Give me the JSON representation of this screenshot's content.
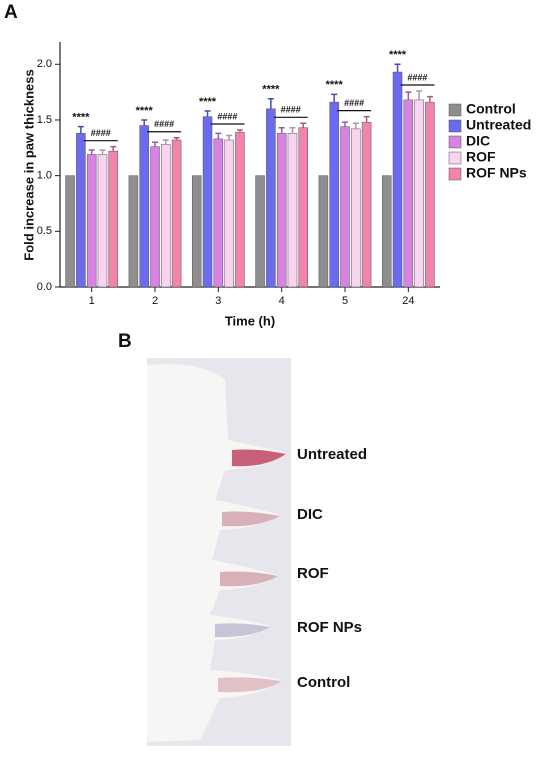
{
  "panel_label": "A",
  "chart_data": {
    "type": "bar",
    "y_label": "Fold increase in paw thickness",
    "x_label": "Time (h)",
    "categories": [
      "1",
      "2",
      "3",
      "4",
      "5",
      "24"
    ],
    "series": [
      {
        "name": "Control",
        "color": "#8e8e8e",
        "values": [
          1,
          1,
          1,
          1,
          1,
          1
        ]
      },
      {
        "name": "Untreated",
        "color": "#6b6bf0",
        "values": [
          1.38,
          1.45,
          1.53,
          1.6,
          1.66,
          1.93
        ],
        "errors": [
          0.06,
          0.05,
          0.05,
          0.09,
          0.07,
          0.07
        ]
      },
      {
        "name": "DIC",
        "color": "#d783e3",
        "values": [
          1.19,
          1.26,
          1.33,
          1.38,
          1.44,
          1.68
        ],
        "errors": [
          0.04,
          0.04,
          0.05,
          0.05,
          0.04,
          0.07
        ]
      },
      {
        "name": "ROF",
        "color": "#f9d3f2",
        "values": [
          1.19,
          1.28,
          1.32,
          1.38,
          1.42,
          1.68
        ],
        "errors": [
          0.04,
          0.04,
          0.04,
          0.05,
          0.05,
          0.08
        ]
      },
      {
        "name": "ROF NPs",
        "color": "#f283ad",
        "values": [
          1.22,
          1.32,
          1.39,
          1.43,
          1.48,
          1.66
        ],
        "errors": [
          0.04,
          0.02,
          0.02,
          0.04,
          0.05,
          0.05
        ]
      }
    ],
    "annotations_vs_control": [
      "****",
      "****",
      "****",
      "****",
      "****",
      "****"
    ],
    "annotations_vs_untreated": [
      "####",
      "####",
      "####",
      "####",
      "####",
      "####"
    ],
    "ylim": [
      0,
      2.2
    ],
    "yticks": [
      {
        "value": 0,
        "label": "0.0"
      },
      {
        "value": 0.5,
        "label": "0.5"
      },
      {
        "value": 1,
        "label": "1.0"
      },
      {
        "value": 1.5,
        "label": "1.5"
      },
      {
        "value": 2,
        "label": "2.0"
      }
    ],
    "legend": "right"
  },
  "photo": {
    "panel_label": "B",
    "labels": [
      "Untreated",
      "DIC",
      "ROF",
      "ROF NPs",
      "Control"
    ]
  }
}
